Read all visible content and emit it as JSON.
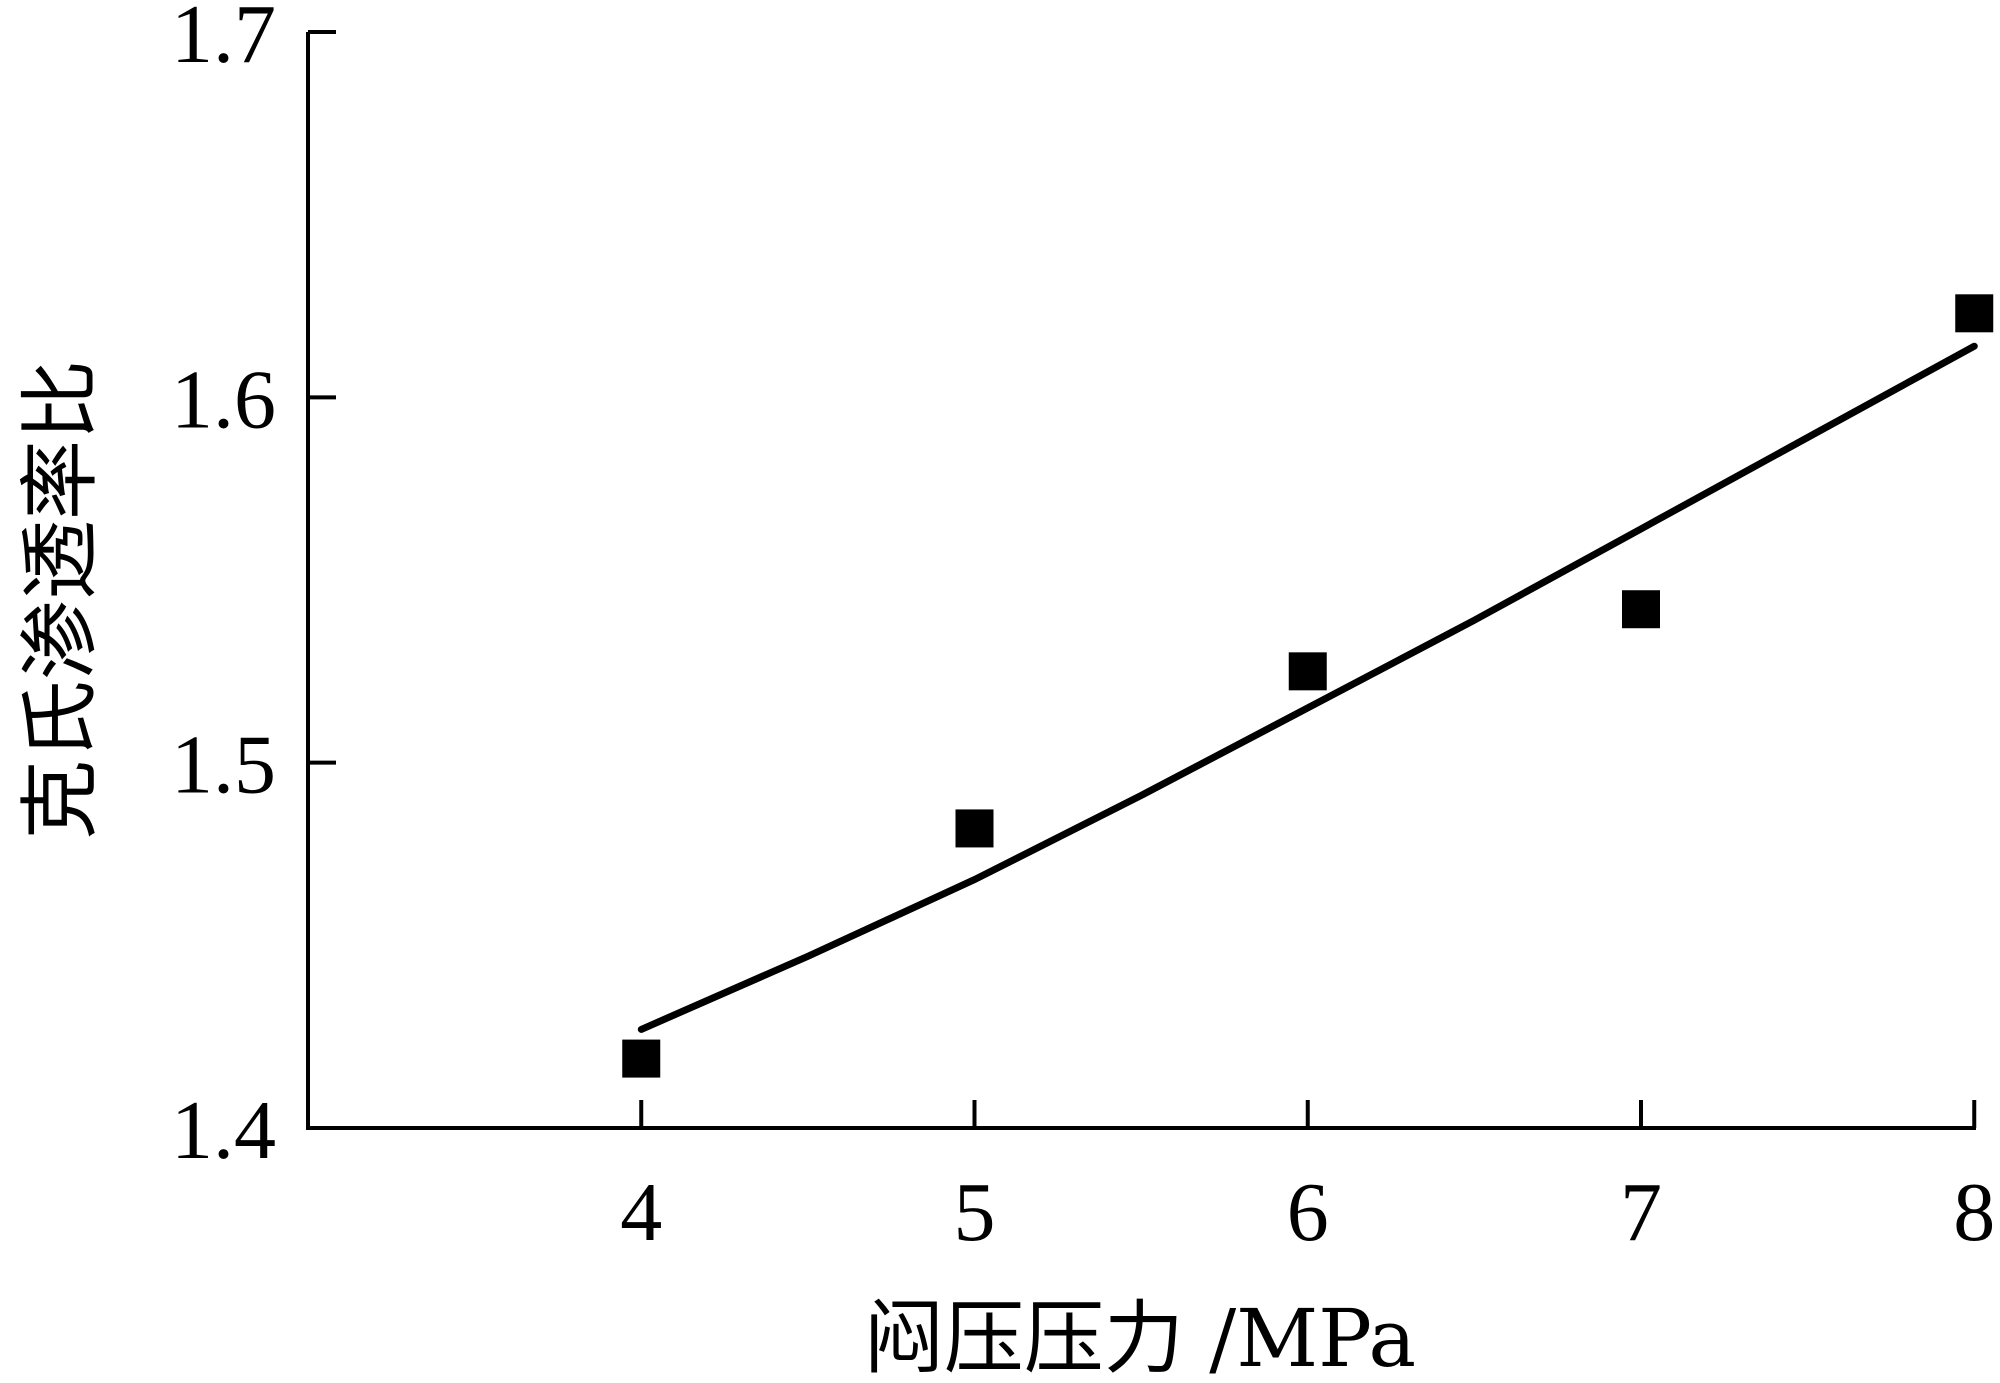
{
  "chart_data": {
    "type": "scatter",
    "xlabel": "闷压压力 /MPa",
    "ylabel": "克氏渗透率比",
    "xlim": [
      3.0,
      8.0
    ],
    "ylim": [
      1.4,
      1.7
    ],
    "x_ticks": [
      "4",
      "5",
      "6",
      "7",
      "8"
    ],
    "y_ticks": [
      "1.4",
      "1.5",
      "1.6",
      "1.7"
    ],
    "grid": false,
    "legend": "none",
    "colors": {
      "axis": "#000000",
      "marker": "#000000",
      "fit_line": "#000000"
    },
    "series": [
      {
        "marker": "square",
        "x": [
          4,
          5,
          6,
          7,
          8
        ],
        "y": [
          1.419,
          1.482,
          1.525,
          1.542,
          1.623
        ]
      }
    ],
    "fit_line": {
      "x": [
        4.0,
        4.5,
        5.0,
        5.5,
        6.0,
        6.5,
        7.0,
        7.5,
        8.0
      ],
      "y": [
        1.427,
        1.447,
        1.468,
        1.491,
        1.515,
        1.539,
        1.564,
        1.589,
        1.614
      ]
    }
  }
}
